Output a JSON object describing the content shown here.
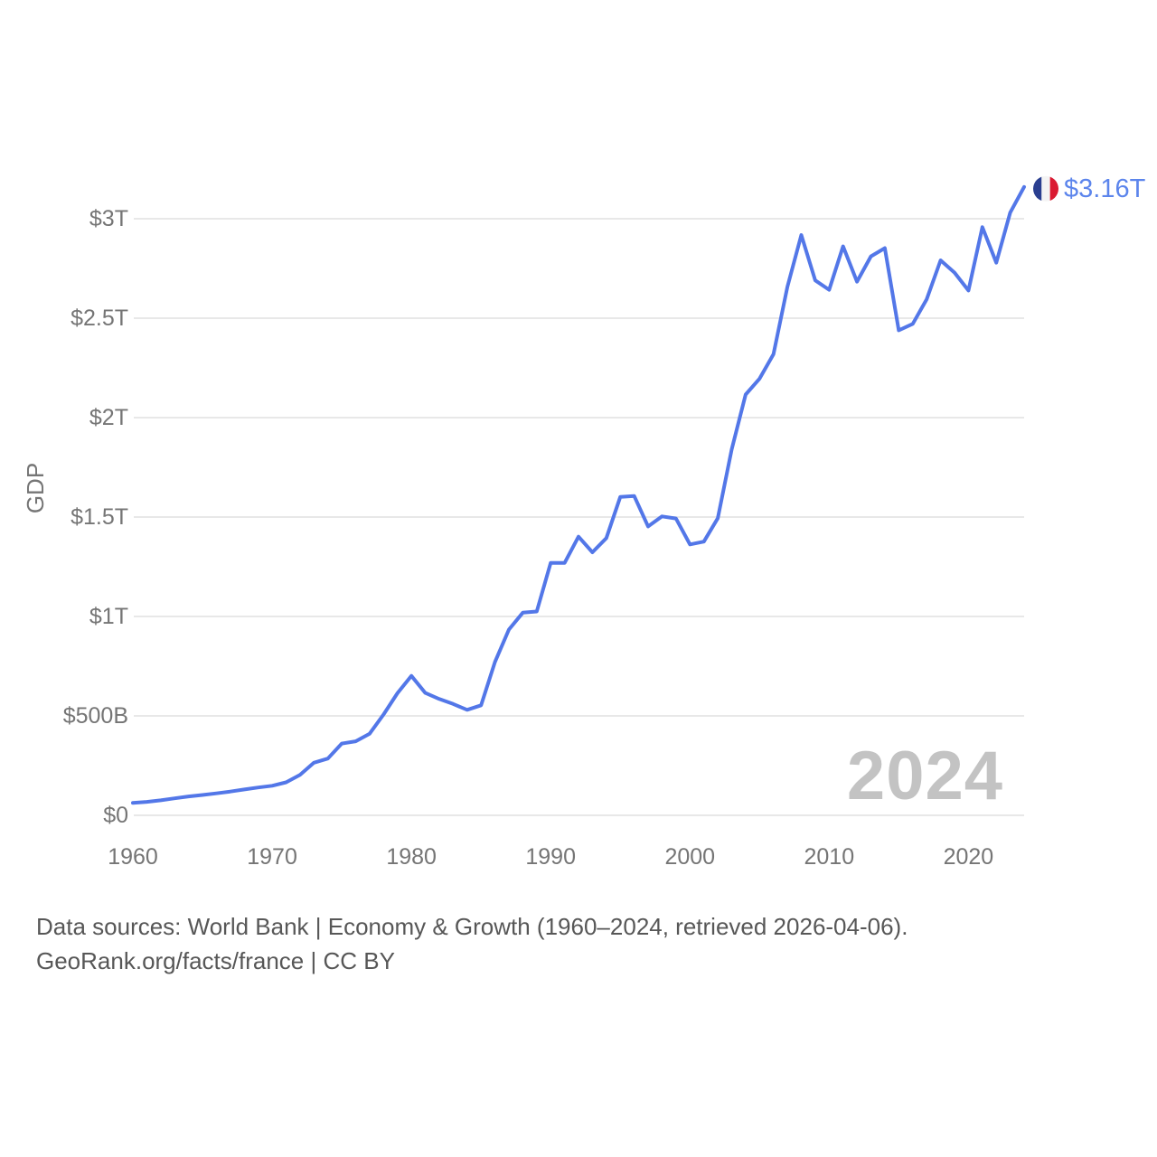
{
  "chart": {
    "y_axis_title": "GDP",
    "watermark": "2024",
    "end_label": "$3.16T",
    "colors": {
      "line": "#5377e8",
      "end_label": "#5c85ec",
      "grid": "#e8e8e8",
      "axis_text": "#757575",
      "watermark": "#c3c3c3",
      "flag_blue": "#2a3f90",
      "flag_white": "#f4f4f4",
      "flag_red": "#da1a32"
    },
    "y_ticks": [
      {
        "value_billions": 0,
        "label": "$0"
      },
      {
        "value_billions": 500,
        "label": "$500B"
      },
      {
        "value_billions": 1000,
        "label": "$1T"
      },
      {
        "value_billions": 1500,
        "label": "$1.5T"
      },
      {
        "value_billions": 2000,
        "label": "$2T"
      },
      {
        "value_billions": 2500,
        "label": "$2.5T"
      },
      {
        "value_billions": 3000,
        "label": "$3T"
      }
    ],
    "x_ticks": [
      {
        "year": 1960,
        "label": "1960"
      },
      {
        "year": 1970,
        "label": "1970"
      },
      {
        "year": 1980,
        "label": "1980"
      },
      {
        "year": 1990,
        "label": "1990"
      },
      {
        "year": 2000,
        "label": "2000"
      },
      {
        "year": 2010,
        "label": "2010"
      },
      {
        "year": 2020,
        "label": "2020"
      }
    ]
  },
  "chart_data": {
    "type": "line",
    "title": "",
    "xlabel": "",
    "ylabel": "GDP",
    "series_name": "GDP",
    "legend": "none",
    "grid": "horizontal",
    "xlim": [
      1960,
      2024
    ],
    "ylim_billions": [
      0,
      3250
    ],
    "end_point_label": "$3.16T",
    "end_point_marker": "france-flag",
    "x": [
      1960,
      1961,
      1962,
      1963,
      1964,
      1965,
      1966,
      1967,
      1968,
      1969,
      1970,
      1971,
      1972,
      1973,
      1974,
      1975,
      1976,
      1977,
      1978,
      1979,
      1980,
      1981,
      1982,
      1983,
      1984,
      1985,
      1986,
      1987,
      1988,
      1989,
      1990,
      1991,
      1992,
      1993,
      1994,
      1995,
      1996,
      1997,
      1998,
      1999,
      2000,
      2001,
      2002,
      2003,
      2004,
      2005,
      2006,
      2007,
      2008,
      2009,
      2010,
      2011,
      2012,
      2013,
      2014,
      2015,
      2016,
      2017,
      2018,
      2019,
      2020,
      2021,
      2022,
      2023,
      2024
    ],
    "values_billions_usd": [
      62.2,
      67.5,
      75.6,
      85.6,
      94.9,
      102.2,
      110.6,
      119.6,
      129.8,
      140.2,
      148.5,
      166.0,
      203.5,
      264.4,
      285.5,
      360.8,
      372.3,
      410.3,
      506.7,
      614.0,
      701.3,
      615.6,
      584.8,
      559.8,
      530.6,
      553.1,
      771.3,
      934.2,
      1018.9,
      1025.2,
      1269.2,
      1269.3,
      1401.5,
      1322.8,
      1394.0,
      1601.1,
      1605.7,
      1452.9,
      1503.0,
      1492.6,
      1362.2,
      1376.5,
      1494.3,
      1840.5,
      2115.7,
      2196.1,
      2318.6,
      2657.2,
      2918.4,
      2690.2,
      2642.6,
      2861.4,
      2683.8,
      2811.1,
      2852.2,
      2439.2,
      2471.3,
      2595.2,
      2791.0,
      2728.9,
      2639.0,
      2957.9,
      2779.1,
      3030.9,
      3160.0
    ]
  },
  "footer": {
    "line1": "Data sources: World Bank | Economy & Growth (1960–2024, retrieved 2026-04-06).",
    "line2": "GeoRank.org/facts/france | CC BY"
  }
}
